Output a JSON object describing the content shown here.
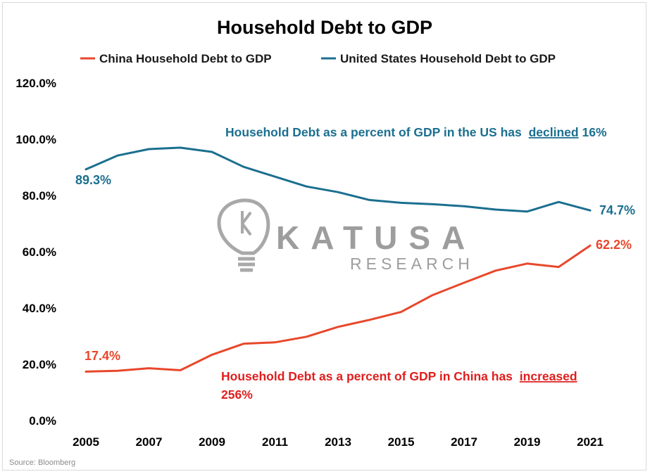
{
  "chart_data": {
    "type": "line",
    "title": "Household Debt to GDP",
    "x": [
      2005,
      2006,
      2007,
      2008,
      2009,
      2010,
      2011,
      2012,
      2013,
      2014,
      2015,
      2016,
      2017,
      2018,
      2019,
      2020,
      2021
    ],
    "xticks": [
      "2005",
      "2007",
      "2009",
      "2011",
      "2013",
      "2015",
      "2017",
      "2019",
      "2021"
    ],
    "yticks": [
      "0.0%",
      "20.0%",
      "40.0%",
      "60.0%",
      "80.0%",
      "100.0%",
      "120.0%"
    ],
    "ylim": [
      0,
      120
    ],
    "legend_position": "top",
    "series": [
      {
        "name": "China Household Debt to GDP",
        "color": "#e8472b",
        "values": [
          17.4,
          17.7,
          18.6,
          17.9,
          23.4,
          27.3,
          27.8,
          29.8,
          33.3,
          35.8,
          38.6,
          44.6,
          49.0,
          53.3,
          55.8,
          54.6,
          62.2
        ]
      },
      {
        "name": "United States Household Debt to GDP",
        "color": "#1b6f8f",
        "values": [
          89.3,
          94.2,
          96.5,
          97.0,
          95.5,
          90.2,
          86.7,
          83.2,
          81.2,
          78.4,
          77.4,
          76.9,
          76.2,
          75.0,
          74.3,
          77.7,
          74.7
        ]
      }
    ],
    "data_labels": {
      "us_start": "89.3%",
      "us_end": "74.7%",
      "china_start": "17.4%",
      "china_end": "62.2%"
    },
    "annotations": {
      "us_text": "Household  Debt as a percent of GDP in the US has",
      "us_keyword": "declined",
      "us_suffix": " 16%",
      "china_text": "Household  Debt as a percent of GDP in China has",
      "china_keyword": "increased",
      "china_line2": "256%"
    },
    "source": "Source: Bloomberg",
    "watermark": {
      "brand": "KATUSA",
      "sub": "RESEARCH"
    }
  }
}
